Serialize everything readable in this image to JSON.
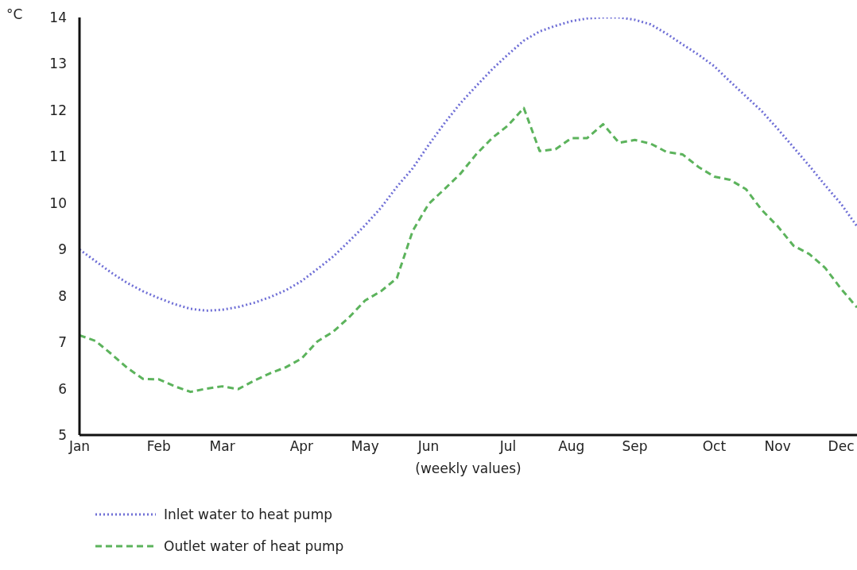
{
  "chart_data": {
    "type": "line",
    "xlabel": "(weekly values)",
    "ylabel": "°C",
    "categories": [
      "Jan",
      null,
      null,
      null,
      null,
      "Feb",
      null,
      null,
      null,
      "Mar",
      null,
      null,
      null,
      null,
      "Apr",
      null,
      null,
      null,
      "May",
      null,
      null,
      null,
      "Jun",
      null,
      null,
      null,
      null,
      "Jul",
      null,
      null,
      null,
      "Aug",
      null,
      null,
      null,
      "Sep",
      null,
      null,
      null,
      null,
      "Oct",
      null,
      null,
      null,
      "Nov",
      null,
      null,
      null,
      "Dec",
      null
    ],
    "ylim": [
      5,
      14
    ],
    "yticks": [
      5,
      6,
      7,
      8,
      9,
      10,
      11,
      12,
      13,
      14
    ],
    "grid": false,
    "legend": "bottom left",
    "marker": "none",
    "series": [
      {
        "name": "Inlet water to heat pump",
        "color": "#6f6fd6",
        "line_style": "dotted",
        "values": [
          9.0,
          8.75,
          8.5,
          8.28,
          8.1,
          7.95,
          7.82,
          7.72,
          7.68,
          7.7,
          7.76,
          7.85,
          7.97,
          8.12,
          8.32,
          8.58,
          8.85,
          9.18,
          9.52,
          9.9,
          10.35,
          10.75,
          11.25,
          11.72,
          12.15,
          12.52,
          12.88,
          13.2,
          13.5,
          13.7,
          13.82,
          13.92,
          13.98,
          14.0,
          14.0,
          13.95,
          13.85,
          13.65,
          13.42,
          13.2,
          12.95,
          12.62,
          12.3,
          11.98,
          11.6,
          11.2,
          10.8,
          10.38,
          9.98,
          9.5
        ]
      },
      {
        "name": "Outlet water of heat pump",
        "color": "#5cb35c",
        "line_style": "dashed",
        "values": [
          7.15,
          7.03,
          6.75,
          6.45,
          6.21,
          6.2,
          6.05,
          5.93,
          6.0,
          6.05,
          5.99,
          6.17,
          6.33,
          6.46,
          6.65,
          7.02,
          7.23,
          7.54,
          7.9,
          8.1,
          8.38,
          9.4,
          9.98,
          10.3,
          10.63,
          11.05,
          11.4,
          11.67,
          12.05,
          11.12,
          11.16,
          11.4,
          11.4,
          11.7,
          11.3,
          11.36,
          11.28,
          11.1,
          11.05,
          10.78,
          10.57,
          10.5,
          10.3,
          9.85,
          9.5,
          9.08,
          8.9,
          8.6,
          8.15,
          7.75
        ]
      }
    ]
  }
}
